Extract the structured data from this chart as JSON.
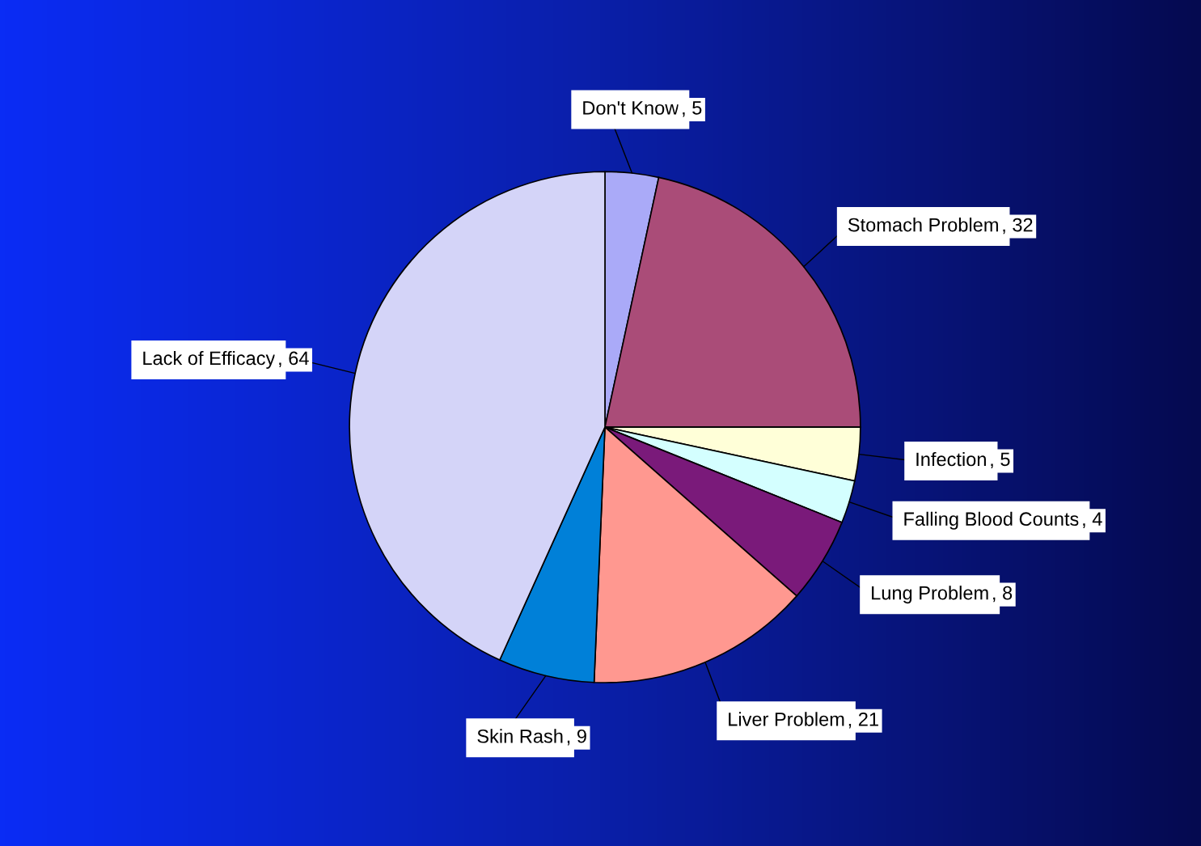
{
  "chart_data": {
    "type": "pie",
    "categories": [
      "Don't Know",
      "Stomach Problem",
      "Infection",
      "Falling Blood Counts",
      "Lung Problem",
      "Liver Problem",
      "Skin Rash",
      "Lack of Efficacy"
    ],
    "values": [
      5,
      32,
      5,
      4,
      8,
      21,
      9,
      64
    ],
    "colors": [
      "#aaaaf8",
      "#aa4c78",
      "#ffffd8",
      "#d4ffff",
      "#7a1a7a",
      "#ff9890",
      "#0080d8",
      "#d4d4f8"
    ],
    "value_labels": [
      ", 5",
      ", 32",
      ", 5",
      ", 4",
      ", 8",
      ", 21",
      ", 9",
      ", 64"
    ],
    "legend": false
  }
}
